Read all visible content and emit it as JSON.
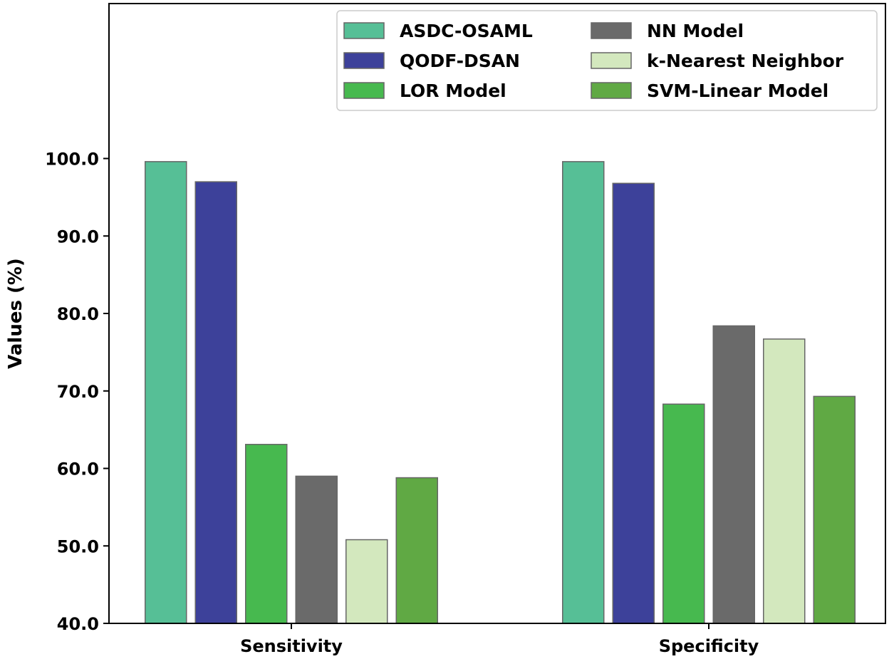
{
  "chart_data": {
    "type": "bar",
    "categories": [
      "Sensitivity",
      "Specificity"
    ],
    "series": [
      {
        "name": "ASDC-OSAML",
        "color": "#56bf96",
        "values": [
          99.6,
          99.6
        ]
      },
      {
        "name": "QODF-DSAN",
        "color": "#3d419a",
        "values": [
          97.0,
          96.8
        ]
      },
      {
        "name": "LOR Model",
        "color": "#47b94f",
        "values": [
          63.1,
          68.3
        ]
      },
      {
        "name": "NN Model",
        "color": "#6a6a6a",
        "values": [
          59.0,
          78.4
        ]
      },
      {
        "name": "k-Nearest Neighbor",
        "color": "#d3e8be",
        "values": [
          50.8,
          76.7
        ]
      },
      {
        "name": "SVM-Linear Model",
        "color": "#60a944",
        "values": [
          58.8,
          69.3
        ]
      }
    ],
    "xlabel": "",
    "ylabel": "Values (%)",
    "ylim": [
      40,
      120
    ],
    "yticks": [
      "40.0",
      "50.0",
      "60.0",
      "70.0",
      "80.0",
      "90.0",
      "100.0"
    ],
    "grid": false,
    "legend": "top-right, 2 columns"
  }
}
